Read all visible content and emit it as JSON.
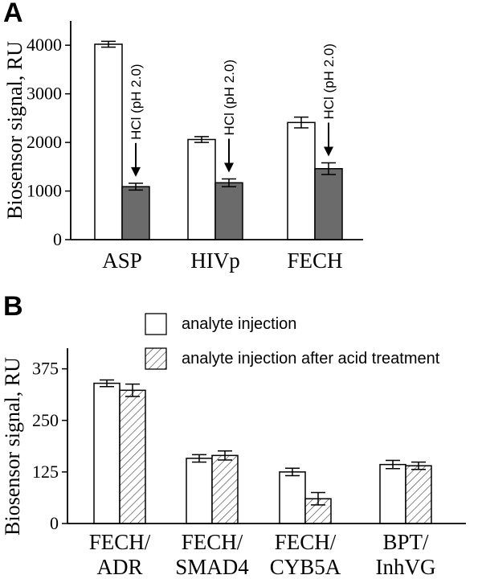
{
  "chart_data": [
    {
      "panel": "A",
      "type": "bar",
      "ylabel": "Biosensor signal, RU",
      "ylim": [
        0,
        4500
      ],
      "yticks": [
        0,
        1000,
        2000,
        3000,
        4000
      ],
      "categories": [
        "ASP",
        "HIVp",
        "FECH"
      ],
      "series": [
        {
          "color": "#ffffff",
          "values": [
            4020,
            2060,
            2410
          ],
          "errors": [
            60,
            60,
            110
          ]
        },
        {
          "color": "#6b6b6b",
          "values": [
            1090,
            1170,
            1460
          ],
          "errors": [
            70,
            80,
            120
          ]
        }
      ],
      "annotations": [
        "HCl (pH 2.0)",
        "HCl (pH 2.0)",
        "HCl (pH 2.0)"
      ]
    },
    {
      "panel": "B",
      "type": "bar",
      "ylabel": "Biosensor signal, RU",
      "ylim": [
        0,
        425
      ],
      "yticks": [
        0,
        125,
        250,
        375
      ],
      "categories": [
        [
          "FECH/",
          "ADR"
        ],
        [
          "FECH/",
          "SMAD4"
        ],
        [
          "FECH/",
          "CYB5A"
        ],
        [
          "BPT/",
          "InhVG"
        ]
      ],
      "series": [
        {
          "name": "analyte injection",
          "fill": "white",
          "values": [
            340,
            158,
            125,
            143
          ],
          "errors": [
            8,
            9,
            9,
            10
          ]
        },
        {
          "name": "analyte injection after acid treatment",
          "fill": "hatched",
          "values": [
            323,
            165,
            60,
            140
          ],
          "errors": [
            15,
            11,
            15,
            9
          ]
        }
      ],
      "legend_position": "top-right"
    }
  ]
}
